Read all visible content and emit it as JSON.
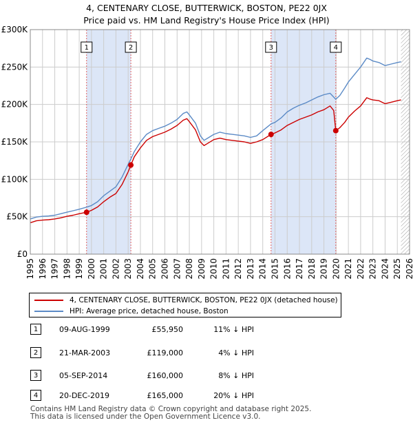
{
  "title_line1": "4, CENTENARY CLOSE, BUTTERWICK, BOSTON, PE22 0JX",
  "title_line2": "Price paid vs. HM Land Registry's House Price Index (HPI)",
  "colors": {
    "price_paid": "#cc0000",
    "hpi": "#5b8ac6",
    "shade": "#dce6f7",
    "grid": "#cccccc",
    "vline": "#e06060"
  },
  "chart_data": {
    "type": "line",
    "title": "Price paid vs. HM Land Registry's House Price Index (HPI)",
    "xlabel": "",
    "ylabel": "",
    "xlim": [
      1995,
      2026
    ],
    "ylim": [
      0,
      300000
    ],
    "x_ticks": [
      1995,
      1996,
      1997,
      1998,
      1999,
      2000,
      2001,
      2002,
      2003,
      2004,
      2005,
      2006,
      2007,
      2008,
      2009,
      2010,
      2011,
      2012,
      2013,
      2014,
      2015,
      2016,
      2017,
      2018,
      2019,
      2020,
      2021,
      2022,
      2023,
      2024,
      2025,
      2026
    ],
    "y_ticks": [
      {
        "value": 0,
        "label": "£0"
      },
      {
        "value": 50000,
        "label": "£50K"
      },
      {
        "value": 100000,
        "label": "£100K"
      },
      {
        "value": 150000,
        "label": "£150K"
      },
      {
        "value": 200000,
        "label": "£200K"
      },
      {
        "value": 250000,
        "label": "£250K"
      },
      {
        "value": 300000,
        "label": "£300K"
      }
    ],
    "grid": true,
    "shaded_ranges": [
      [
        1999.6,
        2003.22
      ],
      [
        2014.68,
        2019.97
      ]
    ],
    "hatched_after": 2025.3,
    "series": [
      {
        "name": "HPI: Average price, detached house, Boston",
        "points": [
          [
            1995.0,
            47000
          ],
          [
            1995.5,
            49500
          ],
          [
            1996.0,
            50500
          ],
          [
            1996.5,
            51000
          ],
          [
            1997.0,
            52000
          ],
          [
            1997.5,
            54000
          ],
          [
            1998.0,
            56000
          ],
          [
            1998.5,
            58000
          ],
          [
            1999.0,
            60000
          ],
          [
            1999.6,
            62800
          ],
          [
            2000.0,
            65000
          ],
          [
            2000.5,
            70000
          ],
          [
            2001.0,
            78000
          ],
          [
            2001.5,
            84000
          ],
          [
            2002.0,
            90000
          ],
          [
            2002.5,
            103000
          ],
          [
            2003.0,
            120000
          ],
          [
            2003.22,
            127000
          ],
          [
            2003.5,
            137000
          ],
          [
            2004.0,
            150000
          ],
          [
            2004.5,
            160000
          ],
          [
            2005.0,
            165000
          ],
          [
            2005.5,
            168000
          ],
          [
            2006.0,
            171000
          ],
          [
            2006.5,
            175000
          ],
          [
            2007.0,
            180000
          ],
          [
            2007.5,
            188000
          ],
          [
            2007.8,
            190000
          ],
          [
            2008.0,
            186000
          ],
          [
            2008.5,
            175000
          ],
          [
            2008.9,
            158000
          ],
          [
            2009.2,
            152000
          ],
          [
            2009.5,
            155000
          ],
          [
            2010.0,
            160000
          ],
          [
            2010.5,
            163000
          ],
          [
            2011.0,
            161000
          ],
          [
            2011.5,
            160000
          ],
          [
            2012.0,
            159000
          ],
          [
            2012.5,
            158000
          ],
          [
            2013.0,
            156000
          ],
          [
            2013.5,
            158000
          ],
          [
            2014.0,
            165000
          ],
          [
            2014.68,
            174000
          ],
          [
            2015.0,
            176000
          ],
          [
            2015.5,
            182000
          ],
          [
            2016.0,
            190000
          ],
          [
            2016.5,
            195000
          ],
          [
            2017.0,
            199000
          ],
          [
            2017.5,
            202000
          ],
          [
            2018.0,
            206000
          ],
          [
            2018.5,
            210000
          ],
          [
            2019.0,
            213000
          ],
          [
            2019.5,
            215000
          ],
          [
            2019.97,
            207000
          ],
          [
            2020.3,
            212000
          ],
          [
            2020.7,
            222000
          ],
          [
            2021.0,
            230000
          ],
          [
            2021.5,
            240000
          ],
          [
            2022.0,
            250000
          ],
          [
            2022.5,
            262000
          ],
          [
            2022.8,
            260000
          ],
          [
            2023.0,
            258000
          ],
          [
            2023.5,
            256000
          ],
          [
            2024.0,
            252000
          ],
          [
            2024.5,
            254000
          ],
          [
            2025.0,
            256000
          ],
          [
            2025.3,
            257000
          ]
        ]
      },
      {
        "name": "4, CENTENARY CLOSE, BUTTERWICK, BOSTON, PE22 0JX (detached house)",
        "points": [
          [
            1995.0,
            42000
          ],
          [
            1995.5,
            44500
          ],
          [
            1996.0,
            45500
          ],
          [
            1996.5,
            46000
          ],
          [
            1997.0,
            47000
          ],
          [
            1997.5,
            48500
          ],
          [
            1998.0,
            50500
          ],
          [
            1998.5,
            52000
          ],
          [
            1999.0,
            54000
          ],
          [
            1999.6,
            55950
          ],
          [
            2000.0,
            58500
          ],
          [
            2000.5,
            63000
          ],
          [
            2001.0,
            70000
          ],
          [
            2001.5,
            76000
          ],
          [
            2002.0,
            81000
          ],
          [
            2002.5,
            93000
          ],
          [
            2003.0,
            110000
          ],
          [
            2003.22,
            119000
          ],
          [
            2003.5,
            130000
          ],
          [
            2004.0,
            142000
          ],
          [
            2004.5,
            152000
          ],
          [
            2005.0,
            157000
          ],
          [
            2005.5,
            160000
          ],
          [
            2006.0,
            163000
          ],
          [
            2006.5,
            167000
          ],
          [
            2007.0,
            172000
          ],
          [
            2007.5,
            179000
          ],
          [
            2007.8,
            181000
          ],
          [
            2008.0,
            177000
          ],
          [
            2008.5,
            166000
          ],
          [
            2008.9,
            150000
          ],
          [
            2009.2,
            145000
          ],
          [
            2009.5,
            148000
          ],
          [
            2010.0,
            153000
          ],
          [
            2010.5,
            155000
          ],
          [
            2011.0,
            153000
          ],
          [
            2011.5,
            152000
          ],
          [
            2012.0,
            151000
          ],
          [
            2012.5,
            150000
          ],
          [
            2013.0,
            148000
          ],
          [
            2013.5,
            150000
          ],
          [
            2014.0,
            153000
          ],
          [
            2014.68,
            160000
          ],
          [
            2015.0,
            162000
          ],
          [
            2015.5,
            166000
          ],
          [
            2016.0,
            172000
          ],
          [
            2016.5,
            176000
          ],
          [
            2017.0,
            180000
          ],
          [
            2017.5,
            183000
          ],
          [
            2018.0,
            186000
          ],
          [
            2018.5,
            190000
          ],
          [
            2019.0,
            193000
          ],
          [
            2019.5,
            198000
          ],
          [
            2019.8,
            192000
          ],
          [
            2019.97,
            165000
          ],
          [
            2020.3,
            169000
          ],
          [
            2020.7,
            176000
          ],
          [
            2021.0,
            183000
          ],
          [
            2021.5,
            191000
          ],
          [
            2022.0,
            198000
          ],
          [
            2022.5,
            209000
          ],
          [
            2022.8,
            207000
          ],
          [
            2023.0,
            206000
          ],
          [
            2023.5,
            205000
          ],
          [
            2024.0,
            201000
          ],
          [
            2024.5,
            203000
          ],
          [
            2025.0,
            205000
          ],
          [
            2025.3,
            206000
          ]
        ]
      }
    ],
    "sales": [
      {
        "id": "1",
        "x": 1999.6,
        "value": 55950
      },
      {
        "id": "2",
        "x": 2003.22,
        "value": 119000
      },
      {
        "id": "3",
        "x": 2014.68,
        "value": 160000
      },
      {
        "id": "4",
        "x": 2019.97,
        "value": 165000
      }
    ]
  },
  "legend": {
    "items": [
      {
        "label": "4, CENTENARY CLOSE, BUTTERWICK, BOSTON, PE22 0JX (detached house)"
      },
      {
        "label": "HPI: Average price, detached house, Boston"
      }
    ]
  },
  "table": {
    "rows": [
      {
        "num": "1",
        "date": "09-AUG-1999",
        "price": "£55,950",
        "hpi": "11% ↓ HPI"
      },
      {
        "num": "2",
        "date": "21-MAR-2003",
        "price": "£119,000",
        "hpi": "4% ↓ HPI"
      },
      {
        "num": "3",
        "date": "05-SEP-2014",
        "price": "£160,000",
        "hpi": "8% ↓ HPI"
      },
      {
        "num": "4",
        "date": "20-DEC-2019",
        "price": "£165,000",
        "hpi": "20% ↓ HPI"
      }
    ]
  },
  "footer": {
    "line1": "Contains HM Land Registry data © Crown copyright and database right 2025.",
    "line2": "This data is licensed under the Open Government Licence v3.0."
  }
}
